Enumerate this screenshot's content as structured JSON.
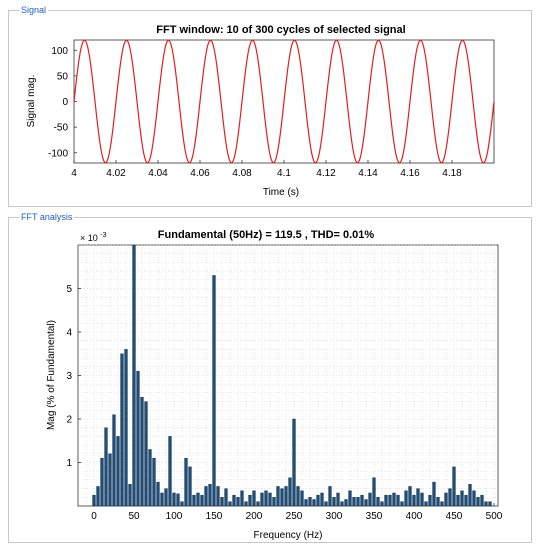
{
  "panels": {
    "signal_label": "Signal",
    "fft_label": "FFT analysis"
  },
  "signal_plot": {
    "title": "FFT window: 10 of 300 cycles of selected signal",
    "xlabel": "Time (s)",
    "ylabel": "Signal mag.",
    "line_color": "#e02020"
  },
  "fft_plot": {
    "title": "Fundamental (50Hz) = 119.5 , THD= 0.01%",
    "xlabel": "Frequency (Hz)",
    "ylabel": "Mag (% of Fundamental)",
    "exponent_label": "× 10",
    "exponent_power": "-3",
    "bar_color": "#1f4e79"
  },
  "chart_data": [
    {
      "type": "line",
      "title": "FFT window: 10 of 300 cycles of selected signal",
      "xlabel": "Time (s)",
      "ylabel": "Signal mag.",
      "xlim": [
        4,
        4.2
      ],
      "ylim": [
        -120,
        120
      ],
      "xticks": [
        "4",
        "4.02",
        "4.04",
        "4.06",
        "4.08",
        "4.1",
        "4.12",
        "4.14",
        "4.16",
        "4.18"
      ],
      "yticks": [
        "100",
        "50",
        "0",
        "-50",
        "-100"
      ],
      "series": [
        {
          "amplitude": 119.5,
          "frequency_hz": 50,
          "phase_rad": 0
        }
      ],
      "grid": false
    },
    {
      "type": "bar",
      "title": "Fundamental (50Hz) = 119.5 , THD= 0.01%",
      "xlabel": "Frequency (Hz)",
      "ylabel": "Mag (% of Fundamental)",
      "xlim": [
        -20,
        505
      ],
      "ylim": [
        0,
        0.006
      ],
      "xticks": [
        "0",
        "50",
        "100",
        "150",
        "200",
        "250",
        "300",
        "350",
        "400",
        "450",
        "500"
      ],
      "yticks": [
        "1",
        "2",
        "3",
        "4",
        "5"
      ],
      "bar_step_hz": 5,
      "x": [
        0,
        5,
        10,
        15,
        20,
        25,
        30,
        35,
        40,
        45,
        50,
        55,
        60,
        65,
        70,
        75,
        80,
        85,
        90,
        95,
        100,
        105,
        110,
        115,
        120,
        125,
        130,
        135,
        140,
        145,
        150,
        155,
        160,
        165,
        170,
        175,
        180,
        185,
        190,
        195,
        200,
        205,
        210,
        215,
        220,
        225,
        230,
        235,
        240,
        245,
        250,
        255,
        260,
        265,
        270,
        275,
        280,
        285,
        290,
        295,
        300,
        305,
        310,
        315,
        320,
        325,
        330,
        335,
        340,
        345,
        350,
        355,
        360,
        365,
        370,
        375,
        380,
        385,
        390,
        395,
        400,
        405,
        410,
        415,
        420,
        425,
        430,
        435,
        440,
        445,
        450,
        455,
        460,
        465,
        470,
        475,
        480,
        485,
        490,
        495
      ],
      "values": [
        0.00025,
        0.00045,
        0.0011,
        0.0018,
        0.0012,
        0.0021,
        0.0016,
        0.0035,
        0.0036,
        0.0005,
        0.006,
        0.0031,
        0.0025,
        0.0024,
        0.0013,
        0.0011,
        0.00055,
        0.0003,
        0.0004,
        0.0016,
        0.0003,
        0.00028,
        0.0001,
        0.0011,
        0.0009,
        0.00025,
        0.0003,
        0.00025,
        0.00045,
        0.0005,
        0.0053,
        0.00045,
        0.0002,
        0.0004,
        0.0001,
        0.00025,
        0.0002,
        0.00035,
        0.0001,
        0.00025,
        0.00035,
        0.0001,
        0.0003,
        0.00035,
        0.0003,
        0.0002,
        0.00045,
        0.0004,
        0.00045,
        0.00065,
        0.002,
        0.00045,
        0.00035,
        0.00015,
        0.0002,
        0.00015,
        0.00025,
        0.0003,
        0.0001,
        0.00045,
        0.0002,
        0.0003,
        0.0001,
        0.00015,
        0.00035,
        0.0002,
        0.0002,
        0.00025,
        0.00015,
        0.0003,
        0.00065,
        0.0002,
        0.0001,
        0.00025,
        0.00025,
        0.0003,
        0.00025,
        0.0001,
        0.00035,
        0.00045,
        0.00025,
        0.0004,
        0.0003,
        0.0001,
        0.00025,
        0.00055,
        0.0002,
        0.0001,
        0.0003,
        0.0004,
        0.0009,
        0.00025,
        0.00035,
        0.00025,
        0.0005,
        0.00035,
        0.0002,
        0.00025,
        0.0001,
        0.0001
      ],
      "grid": true,
      "grid_style": "dotted"
    }
  ]
}
